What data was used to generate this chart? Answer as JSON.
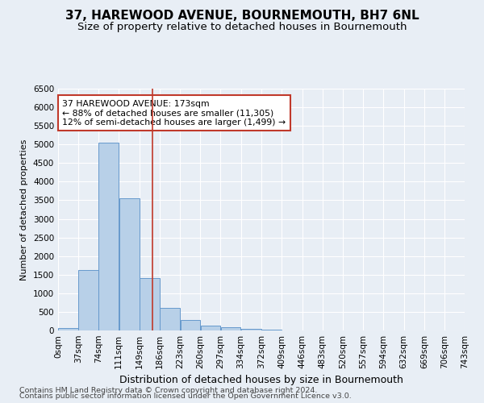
{
  "title": "37, HAREWOOD AVENUE, BOURNEMOUTH, BH7 6NL",
  "subtitle": "Size of property relative to detached houses in Bournemouth",
  "xlabel": "Distribution of detached houses by size in Bournemouth",
  "ylabel": "Number of detached properties",
  "footer_line1": "Contains HM Land Registry data © Crown copyright and database right 2024.",
  "footer_line2": "Contains public sector information licensed under the Open Government Licence v3.0.",
  "bin_edges": [
    0,
    37,
    74,
    111,
    149,
    186,
    223,
    260,
    297,
    334,
    372,
    409,
    446,
    483,
    520,
    557,
    594,
    632,
    669,
    706,
    743
  ],
  "bar_heights": [
    55,
    1620,
    5050,
    3560,
    1410,
    610,
    280,
    135,
    90,
    48,
    28,
    10,
    5,
    2,
    1,
    0,
    0,
    0,
    0,
    0
  ],
  "bar_color": "#b8d0e8",
  "bar_edge_color": "#6699cc",
  "vline_x": 173,
  "vline_color": "#c0392b",
  "annotation_text": "37 HAREWOOD AVENUE: 173sqm\n← 88% of detached houses are smaller (11,305)\n12% of semi-detached houses are larger (1,499) →",
  "annotation_box_color": "white",
  "annotation_box_edge_color": "#c0392b",
  "ylim": [
    0,
    6500
  ],
  "yticks": [
    0,
    500,
    1000,
    1500,
    2000,
    2500,
    3000,
    3500,
    4000,
    4500,
    5000,
    5500,
    6000,
    6500
  ],
  "background_color": "#e8eef5",
  "plot_bg_color": "#e8eef5",
  "grid_color": "white",
  "title_fontsize": 11,
  "subtitle_fontsize": 9.5,
  "xlabel_fontsize": 9,
  "ylabel_fontsize": 8,
  "tick_fontsize": 7.5,
  "annotation_fontsize": 7.8,
  "footer_fontsize": 6.8
}
